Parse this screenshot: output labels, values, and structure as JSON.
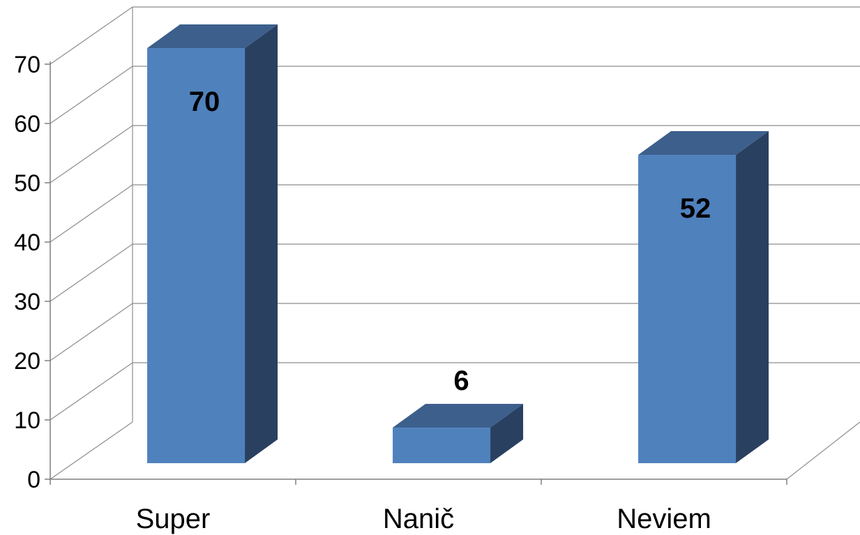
{
  "chart_data": {
    "type": "bar",
    "three_d": true,
    "categories": [
      "Super",
      "Nanič",
      "Neviem"
    ],
    "values": [
      70,
      6,
      52
    ],
    "data_labels": [
      "70",
      "6",
      "52"
    ],
    "ylim": [
      0,
      70
    ],
    "y_ticks": [
      "0",
      "10",
      "20",
      "30",
      "40",
      "50",
      "60",
      "70"
    ],
    "title": "",
    "xlabel": "",
    "ylabel": "",
    "grid": true,
    "legend": "none",
    "colors": {
      "bar_front": "#4f81bd",
      "bar_top": "#3c5f8c",
      "bar_side": "#2a4060",
      "grid": "#8c8c8c",
      "text": "#000000"
    }
  }
}
